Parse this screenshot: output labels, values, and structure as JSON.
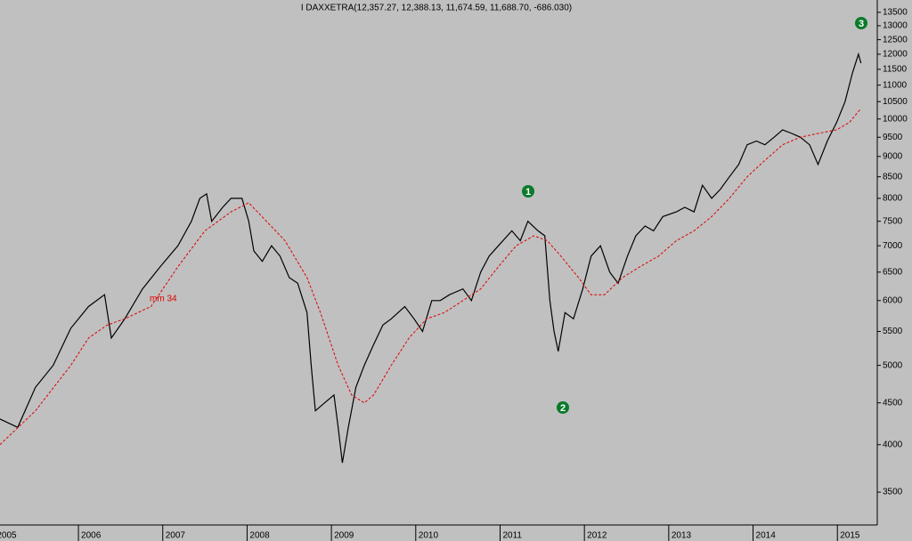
{
  "chart_data": {
    "type": "line",
    "title": "I DAXXETRA(12,357.27, 12,388.13, 11,674.59, 11,688.70, -686.030)",
    "yscale": "log",
    "grid": false,
    "xlim": [
      2005.07,
      2015.42
    ],
    "xticks": [
      2005,
      2006,
      2007,
      2008,
      2009,
      2010,
      2011,
      2012,
      2013,
      2014,
      2015
    ],
    "ylim": [
      3191,
      13977
    ],
    "yticks": [
      3500,
      4000,
      4500,
      5000,
      5500,
      6000,
      6500,
      7000,
      7500,
      8000,
      8500,
      9000,
      9500,
      10000,
      10500,
      11000,
      11500,
      12000,
      12500,
      13000,
      13500
    ],
    "annotations": [
      "mm 34",
      "1",
      "2",
      "3"
    ],
    "series": [
      {
        "color": "#000000",
        "dashed": false,
        "x": [
          2005.07,
          2005.28,
          2005.49,
          2005.7,
          2005.91,
          2006.12,
          2006.31,
          2006.39,
          2006.55,
          2006.76,
          2006.97,
          2007.18,
          2007.34,
          2007.44,
          2007.52,
          2007.58,
          2007.71,
          2007.81,
          2007.94,
          2008.02,
          2008.08,
          2008.18,
          2008.29,
          2008.39,
          2008.5,
          2008.6,
          2008.71,
          2008.76,
          2008.81,
          2008.92,
          2009.03,
          2009.08,
          2009.13,
          2009.2,
          2009.29,
          2009.39,
          2009.5,
          2009.61,
          2009.71,
          2009.87,
          2009.98,
          2010.08,
          2010.19,
          2010.29,
          2010.4,
          2010.56,
          2010.66,
          2010.77,
          2010.87,
          2010.98,
          2011.14,
          2011.24,
          2011.33,
          2011.45,
          2011.53,
          2011.59,
          2011.64,
          2011.69,
          2011.77,
          2011.87,
          2011.98,
          2012.08,
          2012.19,
          2012.3,
          2012.4,
          2012.51,
          2012.61,
          2012.72,
          2012.82,
          2012.93,
          2013.09,
          2013.19,
          2013.3,
          2013.4,
          2013.51,
          2013.61,
          2013.72,
          2013.83,
          2013.93,
          2014.04,
          2014.14,
          2014.25,
          2014.35,
          2014.46,
          2014.56,
          2014.67,
          2014.77,
          2014.88,
          2014.99,
          2015.09,
          2015.18,
          2015.25,
          2015.28
        ],
        "values": [
          4300,
          4200,
          4700,
          5000,
          5550,
          5900,
          6100,
          5400,
          5700,
          6200,
          6600,
          7000,
          7500,
          8000,
          8100,
          7500,
          7800,
          8000,
          8000,
          7500,
          6900,
          6700,
          7000,
          6800,
          6400,
          6300,
          5800,
          5000,
          4400,
          4500,
          4600,
          4200,
          3800,
          4200,
          4700,
          5000,
          5300,
          5600,
          5700,
          5900,
          5700,
          5500,
          6000,
          6000,
          6100,
          6200,
          6000,
          6500,
          6800,
          7000,
          7300,
          7100,
          7500,
          7300,
          7200,
          6000,
          5500,
          5200,
          5800,
          5700,
          6200,
          6800,
          7000,
          6500,
          6300,
          6800,
          7200,
          7400,
          7300,
          7600,
          7700,
          7800,
          7700,
          8300,
          8000,
          8200,
          8500,
          8800,
          9300,
          9400,
          9300,
          9500,
          9700,
          9600,
          9500,
          9300,
          8800,
          9400,
          9900,
          10500,
          11400,
          12000,
          11700
        ]
      },
      {
        "color": "#e00000",
        "dashed": true,
        "x": [
          2005.07,
          2005.49,
          2005.91,
          2006.12,
          2006.34,
          2006.55,
          2006.86,
          2007.18,
          2007.5,
          2007.81,
          2008.02,
          2008.23,
          2008.45,
          2008.71,
          2008.87,
          2009.08,
          2009.24,
          2009.39,
          2009.5,
          2009.71,
          2009.92,
          2010.13,
          2010.34,
          2010.56,
          2010.77,
          2010.98,
          2011.19,
          2011.4,
          2011.56,
          2011.72,
          2011.93,
          2012.08,
          2012.24,
          2012.45,
          2012.66,
          2012.88,
          2013.09,
          2013.3,
          2013.51,
          2013.72,
          2013.93,
          2014.14,
          2014.35,
          2014.56,
          2014.77,
          2014.99,
          2015.14,
          2015.28
        ],
        "values": [
          4000,
          4400,
          5000,
          5400,
          5600,
          5700,
          5900,
          6600,
          7300,
          7700,
          7900,
          7500,
          7100,
          6400,
          5800,
          5000,
          4600,
          4500,
          4600,
          5000,
          5400,
          5700,
          5800,
          6000,
          6200,
          6600,
          7000,
          7200,
          7100,
          6800,
          6400,
          6100,
          6100,
          6400,
          6600,
          6800,
          7100,
          7300,
          7600,
          8000,
          8500,
          8900,
          9300,
          9500,
          9600,
          9700,
          9900,
          10300
        ]
      }
    ]
  }
}
